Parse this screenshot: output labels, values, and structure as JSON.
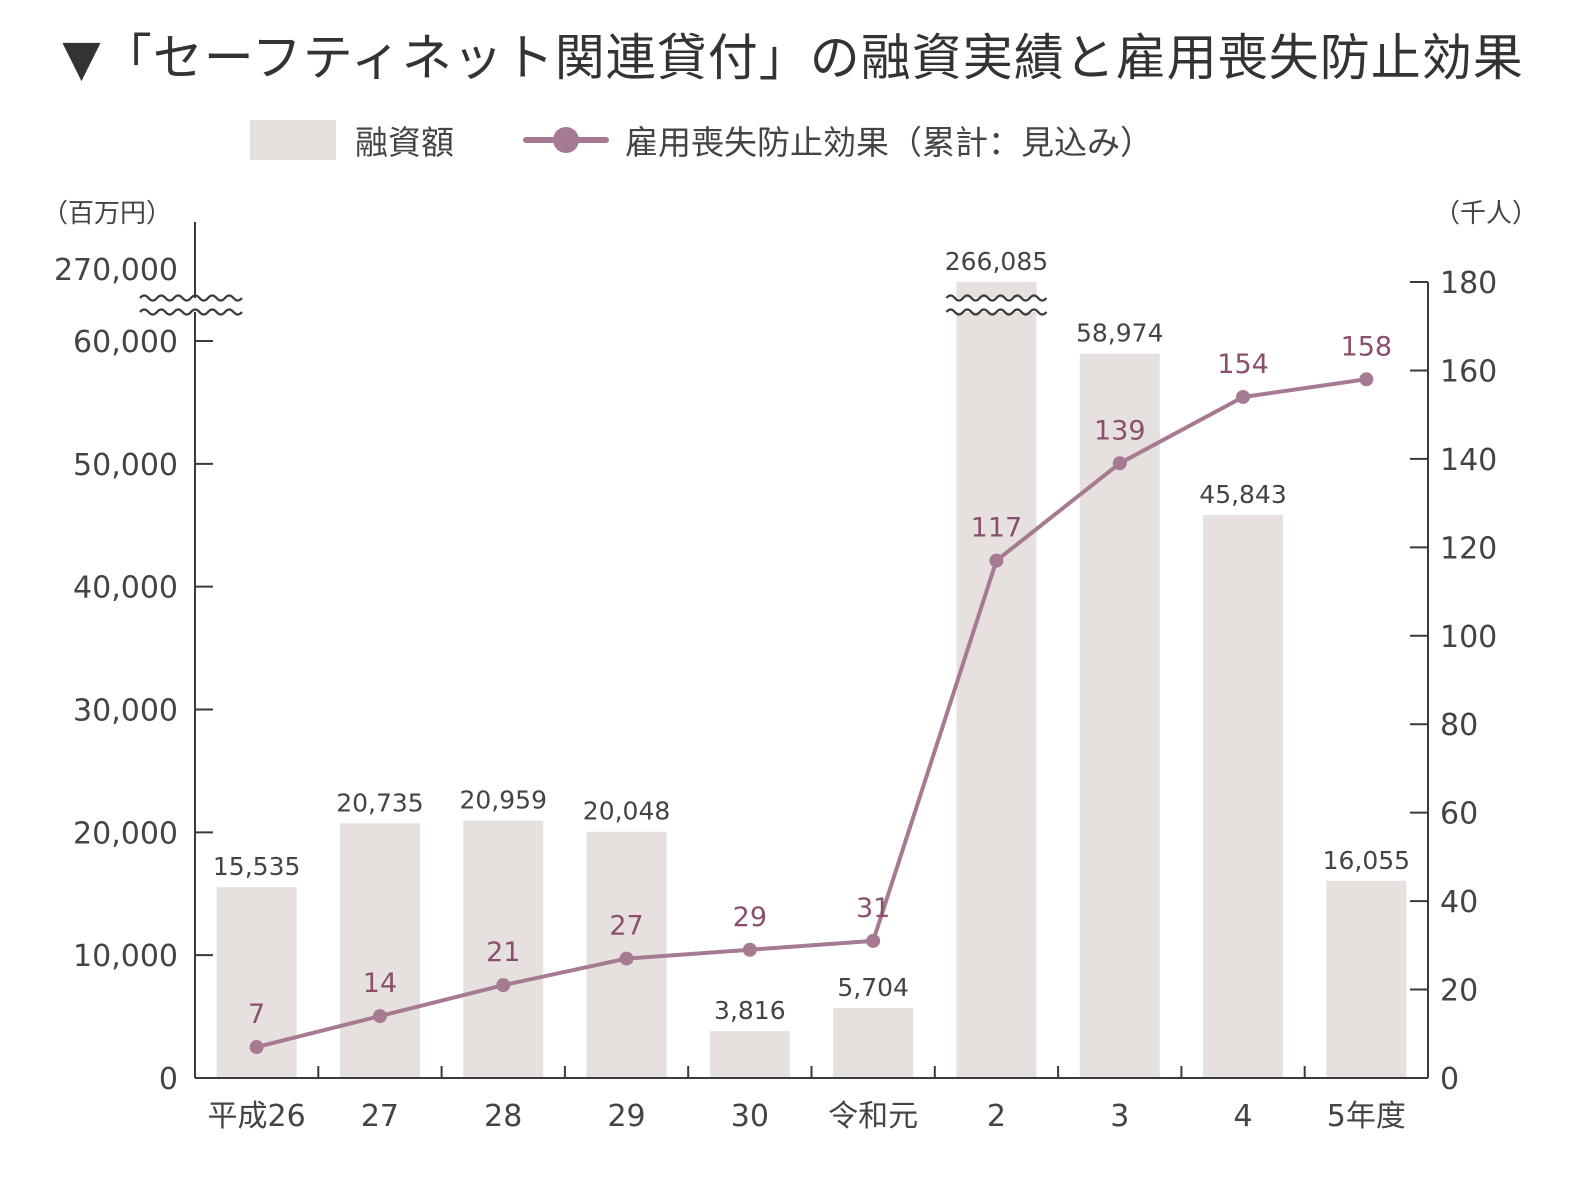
{
  "title": "▼「セーフティネット関連貸付」の融資実績と雇用喪失防止効果",
  "legend": {
    "bar_label": "融資額",
    "line_label": "雇用喪失防止効果（累計：見込み）"
  },
  "colors": {
    "bar": "#e6e1de",
    "line": "#a67a92",
    "line_label": "#8a4f6e",
    "axis": "#3a3a3a"
  },
  "chart_data": {
    "type": "bar",
    "categories": [
      "平成26",
      "27",
      "28",
      "29",
      "30",
      "令和元",
      "2",
      "3",
      "4",
      "5年度"
    ],
    "series": [
      {
        "name": "融資額",
        "type": "bar",
        "axis": "left",
        "values": [
          15535,
          20735,
          20959,
          20048,
          3816,
          5704,
          266085,
          58974,
          45843,
          16055
        ],
        "labels": [
          "15,535",
          "20,735",
          "20,959",
          "20,048",
          "3,816",
          "5,704",
          "266,085",
          "58,974",
          "45,843",
          "16,055"
        ]
      },
      {
        "name": "雇用喪失防止効果（累計：見込み）",
        "type": "line",
        "axis": "right",
        "values": [
          7,
          14,
          21,
          27,
          29,
          31,
          117,
          139,
          154,
          158
        ],
        "labels": [
          "7",
          "14",
          "21",
          "27",
          "29",
          "31",
          "117",
          "139",
          "154",
          "158"
        ]
      }
    ],
    "left_axis": {
      "unit": "（百万円）",
      "ticks": [
        0,
        10000,
        20000,
        30000,
        40000,
        50000,
        60000
      ],
      "tick_labels": [
        "0",
        "10,000",
        "20,000",
        "30,000",
        "40,000",
        "50,000",
        "60,000"
      ],
      "ylim": [
        0,
        60000
      ],
      "break_label": "270,000",
      "axis_break": true
    },
    "right_axis": {
      "unit": "（千人）",
      "ticks": [
        0,
        20,
        40,
        60,
        80,
        100,
        120,
        140,
        160,
        180
      ],
      "tick_labels": [
        "0",
        "20",
        "40",
        "60",
        "80",
        "100",
        "120",
        "140",
        "160",
        "180"
      ],
      "ylim": [
        0,
        180
      ]
    },
    "grid": false,
    "legend_position": "top"
  }
}
